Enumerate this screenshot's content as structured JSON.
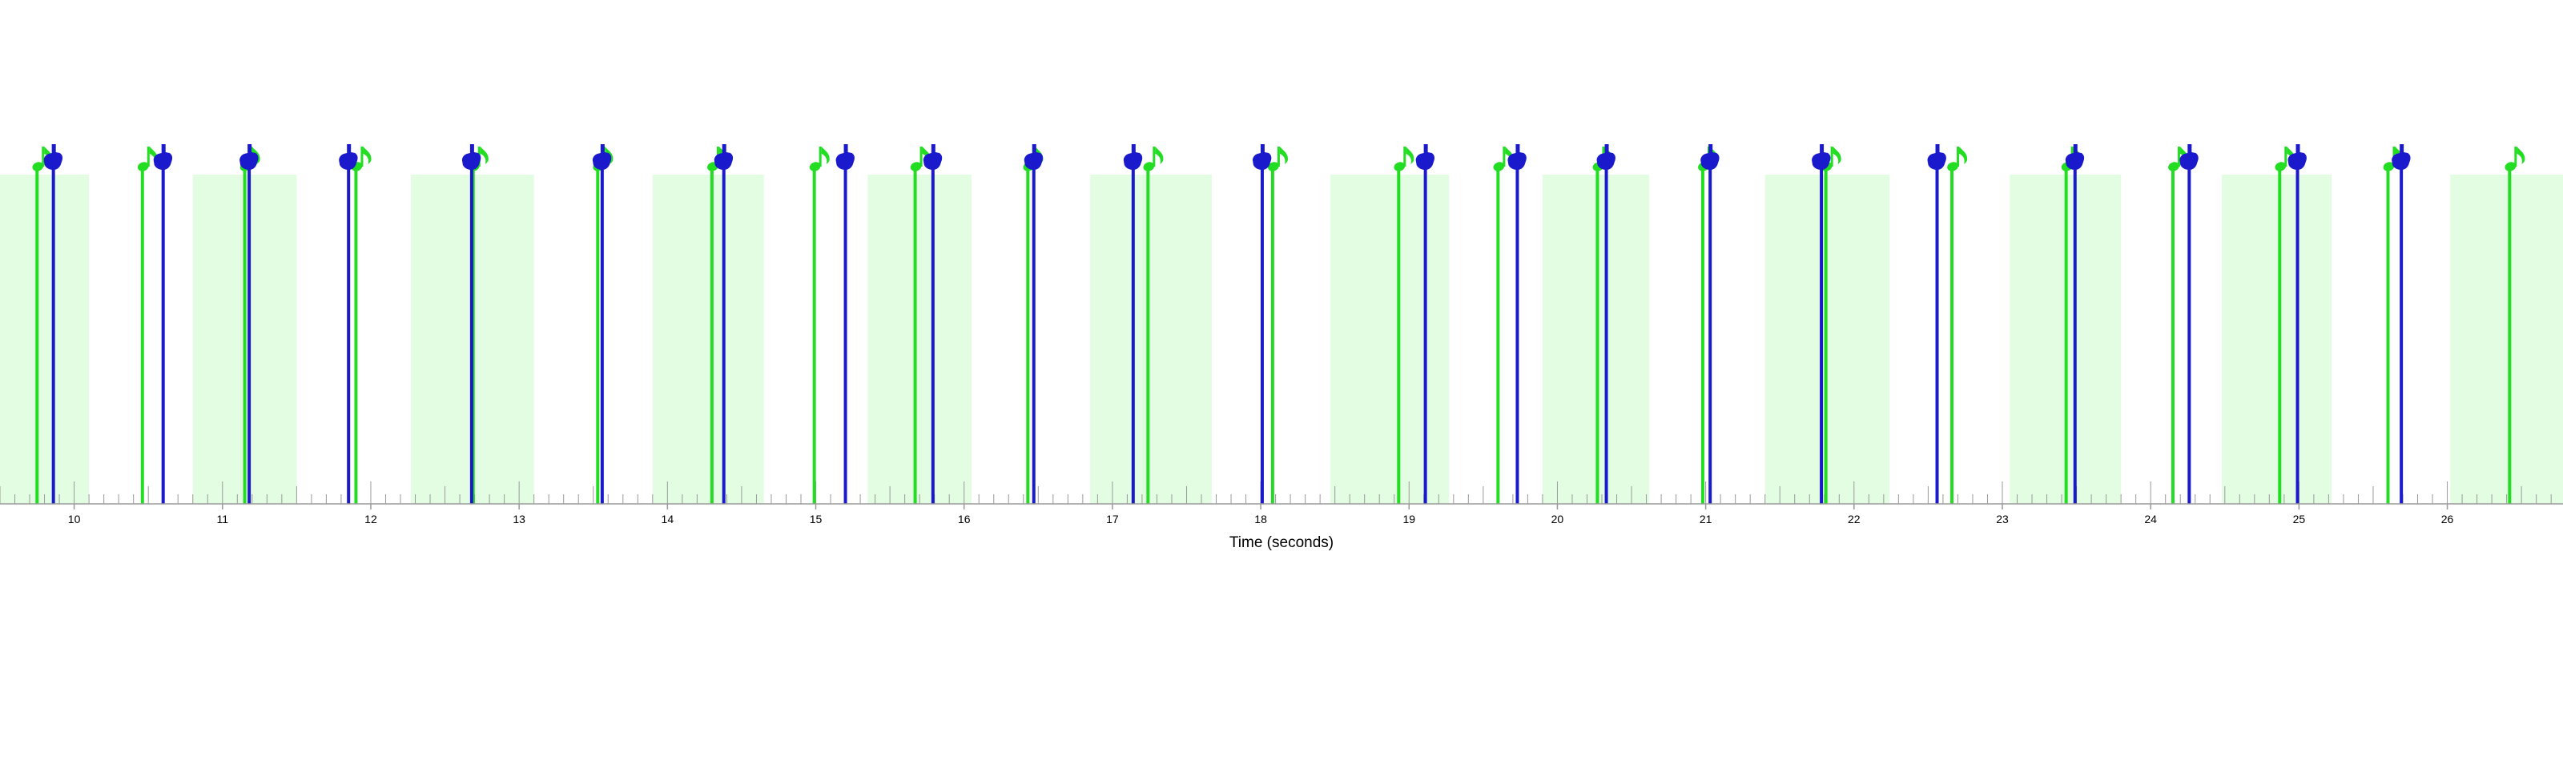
{
  "chart_data": {
    "type": "timeline",
    "xlabel": "Time (seconds)",
    "xlim": [
      9.5,
      26.78
    ],
    "x_ticks": [
      10,
      11,
      12,
      13,
      14,
      15,
      16,
      17,
      18,
      19,
      20,
      21,
      22,
      23,
      24,
      25,
      26
    ],
    "x_tick_labels": [
      "10",
      "11",
      "12",
      "13",
      "14",
      "15",
      "16",
      "17",
      "18",
      "19",
      "20",
      "21",
      "22",
      "23",
      "24",
      "25",
      "26"
    ],
    "shaded_intervals": [
      [
        9.5,
        10.1
      ],
      [
        10.8,
        11.5
      ],
      [
        12.27,
        13.1
      ],
      [
        13.9,
        14.65
      ],
      [
        15.35,
        16.05
      ],
      [
        16.85,
        17.67
      ],
      [
        18.47,
        19.27
      ],
      [
        19.9,
        20.62
      ],
      [
        21.4,
        22.24
      ],
      [
        23.05,
        23.8
      ],
      [
        24.48,
        25.22
      ],
      [
        26.02,
        26.78
      ]
    ],
    "series": [
      {
        "name": "",
        "marker": "music-note",
        "color": "#22dd22",
        "x": [
          9.75,
          10.46,
          11.15,
          11.9,
          12.69,
          13.53,
          14.3,
          14.99,
          15.67,
          16.43,
          17.24,
          18.08,
          18.93,
          19.6,
          20.27,
          20.98,
          21.81,
          22.66,
          23.43,
          24.15,
          24.87,
          25.6,
          26.42
        ]
      },
      {
        "name": "",
        "marker": "hand-tap",
        "color": "#1a1acc",
        "x": [
          9.86,
          10.6,
          11.18,
          11.85,
          12.68,
          13.56,
          14.38,
          15.2,
          15.79,
          16.47,
          17.14,
          18.01,
          19.11,
          19.73,
          20.33,
          21.03,
          21.78,
          22.56,
          23.49,
          24.26,
          24.99,
          25.69
        ]
      }
    ],
    "colors": {
      "shade": "#e3fde3",
      "axis": "#999999",
      "tick": "#999999",
      "label": "#000000"
    }
  }
}
